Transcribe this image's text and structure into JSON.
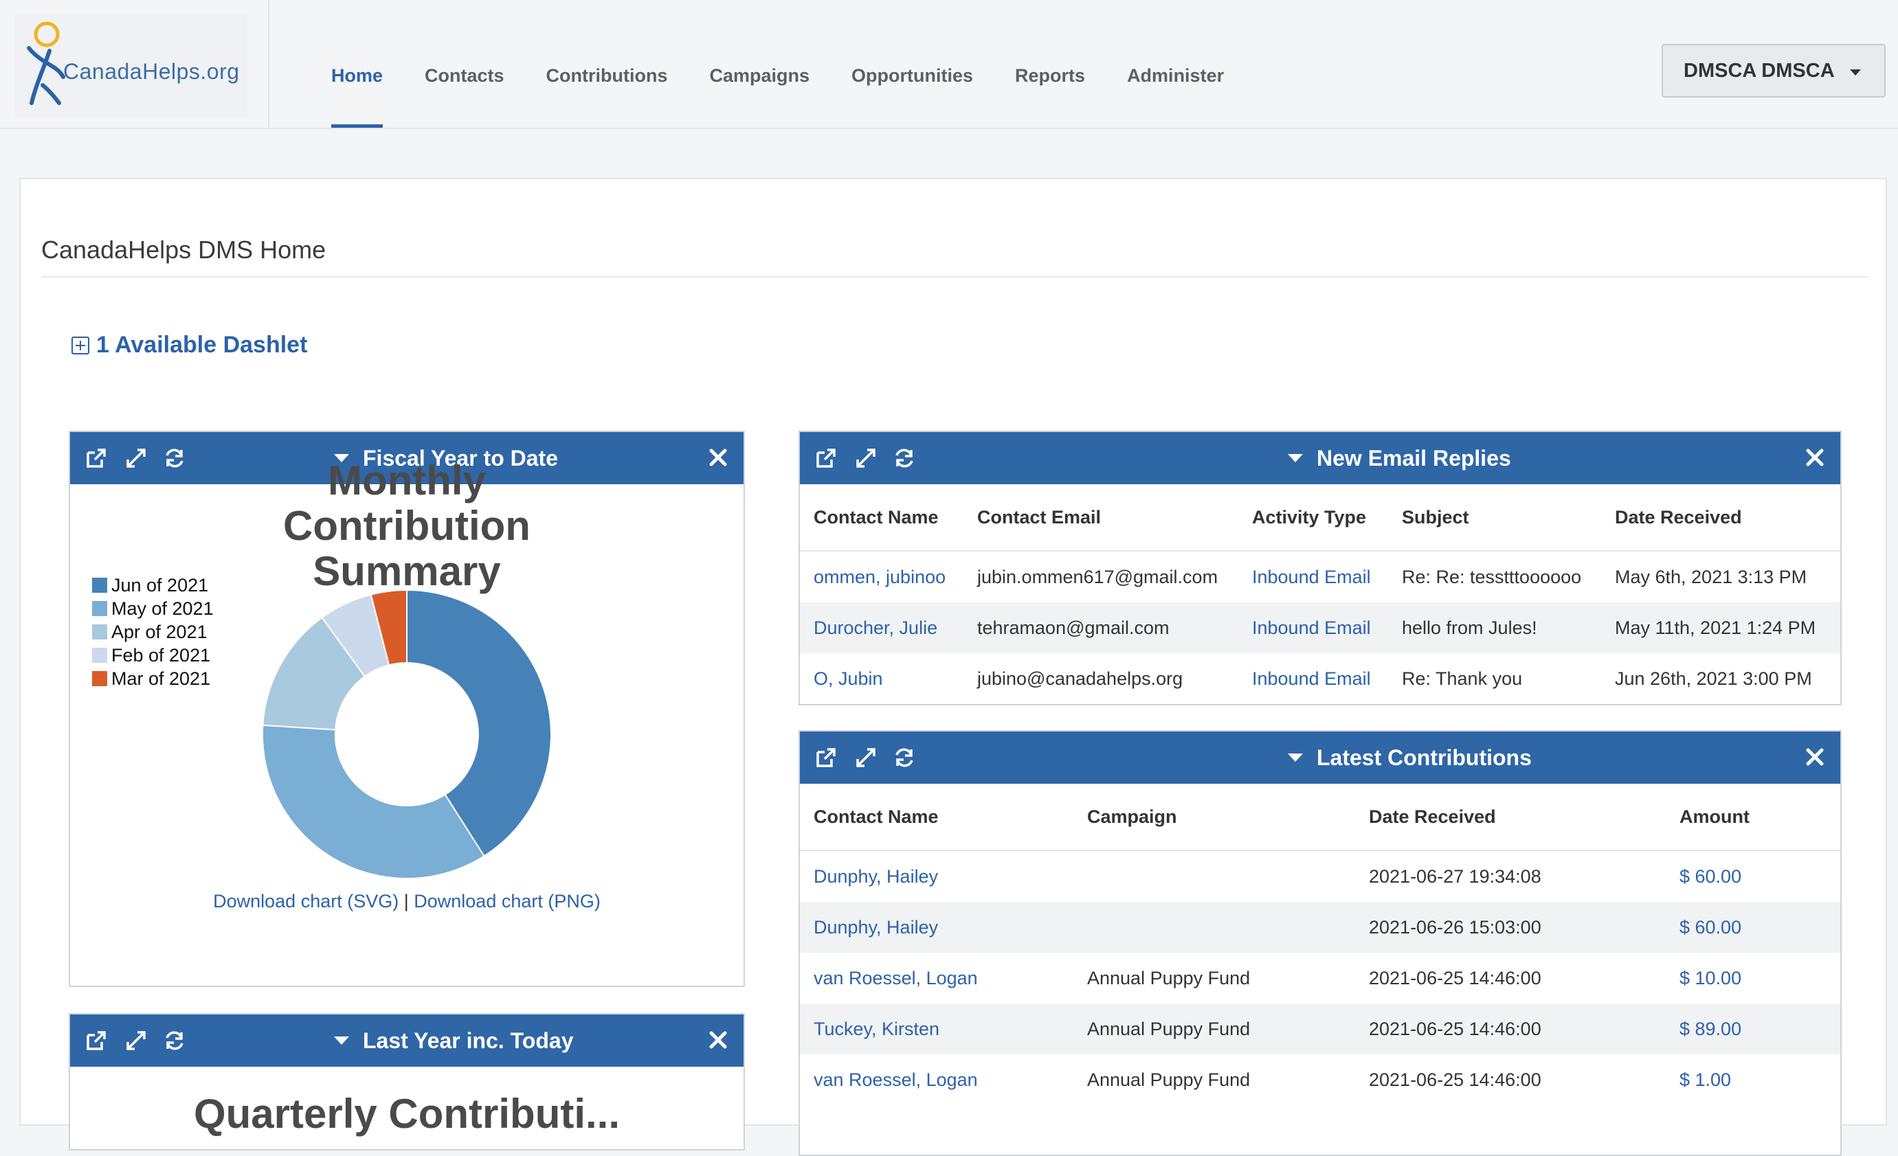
{
  "header": {
    "logo_text": "CanadaHelps.org",
    "nav": [
      {
        "label": "Home",
        "active": true
      },
      {
        "label": "Contacts"
      },
      {
        "label": "Contributions"
      },
      {
        "label": "Campaigns"
      },
      {
        "label": "Opportunities"
      },
      {
        "label": "Reports"
      },
      {
        "label": "Administer"
      }
    ],
    "user_menu": "DMSCA DMSCA"
  },
  "page": {
    "title": "CanadaHelps DMS Home",
    "available_dashlets": "1 Available Dashlet"
  },
  "dashlets": {
    "fiscal": {
      "title": "Fiscal Year to Date",
      "downloads": {
        "svg": "Download chart (SVG)",
        "sep": " | ",
        "png": "Download chart (PNG)"
      }
    },
    "last_year": {
      "title": "Last Year inc. Today",
      "subtitle_partial": "Quarterly Contributi..."
    },
    "email_replies": {
      "title": "New Email Replies",
      "columns": [
        "Contact Name",
        "Contact Email",
        "Activity Type",
        "Subject",
        "Date Received"
      ],
      "rows": [
        [
          "ommen, jubinoo",
          "jubin.ommen617@gmail.com",
          "Inbound Email",
          "Re: Re: tesstttoooooo",
          "May 6th, 2021 3:13 PM"
        ],
        [
          "Durocher, Julie",
          "tehramaon@gmail.com",
          "Inbound Email",
          "hello from Jules!",
          "May 11th, 2021 1:24 PM"
        ],
        [
          "O, Jubin",
          "jubino@canadahelps.org",
          "Inbound Email",
          "Re: Thank you",
          "Jun 26th, 2021 3:00 PM"
        ]
      ]
    },
    "latest": {
      "title": "Latest Contributions",
      "columns": [
        "Contact Name",
        "Campaign",
        "Date Received",
        "Amount"
      ],
      "rows": [
        [
          "Dunphy, Hailey",
          "",
          "2021-06-27 19:34:08",
          "$ 60.00"
        ],
        [
          "Dunphy, Hailey",
          "",
          "2021-06-26 15:03:00",
          "$ 60.00"
        ],
        [
          "van Roessel, Logan",
          "Annual Puppy Fund",
          "2021-06-25 14:46:00",
          "$ 10.00"
        ],
        [
          "Tuckey, Kirsten",
          "Annual Puppy Fund",
          "2021-06-25 14:46:00",
          "$ 89.00"
        ],
        [
          "van Roessel, Logan",
          "Annual Puppy Fund",
          "2021-06-25 14:46:00",
          "$ 1.00"
        ]
      ]
    }
  },
  "chart_data": {
    "type": "pie",
    "title": "Monthly Contribution Summary",
    "donut": true,
    "legend_position": "left",
    "categories": [
      "Jun of 2021",
      "May of 2021",
      "Apr of 2021",
      "Feb of 2021",
      "Mar of 2021"
    ],
    "values": [
      41,
      35,
      14,
      6,
      4
    ],
    "colors": [
      "#4682b8",
      "#7aaed4",
      "#a9c9de",
      "#cbd9ec",
      "#d95b2a"
    ]
  }
}
